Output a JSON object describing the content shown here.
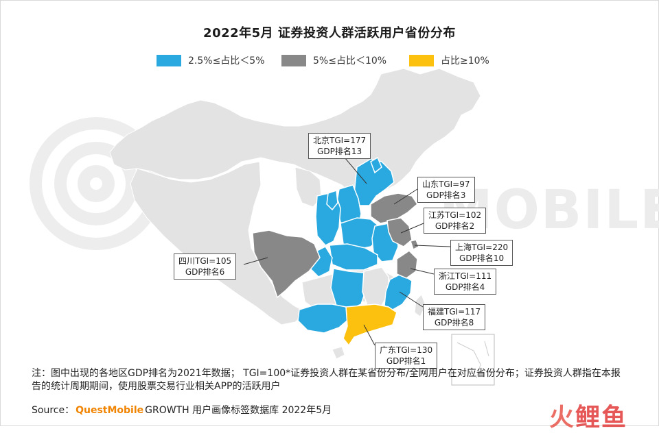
{
  "title": "2022年5月 证券投资人群活跃用户省份分布",
  "legend": [
    {
      "label": "2.5%≤占比＜5%",
      "color": "#29a9df"
    },
    {
      "label": "5%≤占比＜10%",
      "color": "#888888"
    },
    {
      "label": "占比≥10%",
      "color": "#fcc10e"
    }
  ],
  "colors": {
    "base": "#e3e3e3",
    "low": "#29a9df",
    "mid": "#888888",
    "high": "#fcc10e"
  },
  "watermark": "MOBILE",
  "callouts": {
    "beijing": {
      "line1": "北京TGI=177",
      "line2": "GDP排名13"
    },
    "shandong": {
      "line1": "山东TGI=97",
      "line2": "GDP排名3"
    },
    "jiangsu": {
      "line1": "江苏TGI=102",
      "line2": "GDP排名2"
    },
    "shanghai": {
      "line1": "上海TGI=220",
      "line2": "GDP排名10"
    },
    "zhejiang": {
      "line1": "浙江TGI=111",
      "line2": "GDP排名4"
    },
    "fujian": {
      "line1": "福建TGI=117",
      "line2": "GDP排名8"
    },
    "guangdong": {
      "line1": "广东TGI=130",
      "line2": "GDP排名1"
    },
    "sichuan": {
      "line1": "四川TGI=105",
      "line2": "GDP排名6"
    }
  },
  "note": "注：图中出现的各地区GDP排名为2021年数据； TGI=100*证券投资人群在某省份分布/全网用户在对应省份分布；证券投资人群指在本报告的统计周期期间，使用股票交易行业相关APP的活跃用户",
  "source": {
    "prefix": "Source：",
    "brand": "QuestMobile",
    "rest": "GROWTH 用户画像标签数据库 2022年5月"
  },
  "corner_logo": {
    "left": "火",
    "right": "鲤鱼"
  }
}
